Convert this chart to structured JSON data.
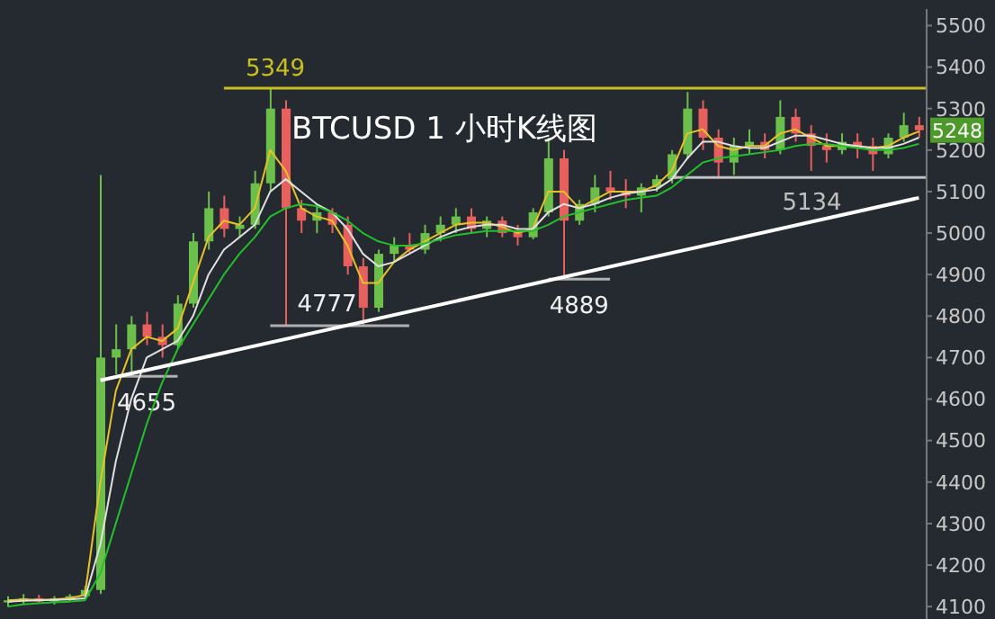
{
  "chart_data": {
    "type": "candlestick",
    "title": "BTCUSD 1 小时K线图",
    "categories": [
      null,
      null,
      null,
      null,
      null,
      null,
      null,
      null,
      null,
      null,
      null,
      null,
      null,
      null,
      null,
      null,
      null,
      null,
      null,
      null,
      null,
      null,
      null,
      null,
      null,
      null,
      null,
      null,
      null,
      null,
      null,
      null,
      null,
      null,
      null,
      null,
      null,
      null,
      null,
      null,
      null,
      null,
      null,
      null,
      null,
      null,
      null,
      null,
      null,
      null,
      null,
      null,
      null,
      null,
      null,
      null,
      null,
      null,
      null,
      null
    ],
    "ohlc": [
      [
        4110,
        4125,
        4100,
        4115
      ],
      [
        4115,
        4130,
        4105,
        4120
      ],
      [
        4120,
        4128,
        4110,
        4112
      ],
      [
        4112,
        4125,
        4105,
        4120
      ],
      [
        4120,
        4130,
        4112,
        4125
      ],
      [
        4125,
        4150,
        4118,
        4140
      ],
      [
        4140,
        5140,
        4130,
        4700
      ],
      [
        4700,
        4780,
        4660,
        4720
      ],
      [
        4720,
        4800,
        4655,
        4780
      ],
      [
        4780,
        4810,
        4730,
        4750
      ],
      [
        4750,
        4780,
        4700,
        4730
      ],
      [
        4730,
        4850,
        4720,
        4830
      ],
      [
        4830,
        5000,
        4820,
        4980
      ],
      [
        4980,
        5100,
        4960,
        5060
      ],
      [
        5060,
        5090,
        4990,
        5010
      ],
      [
        5010,
        5040,
        4990,
        5020
      ],
      [
        5020,
        5150,
        5010,
        5120
      ],
      [
        5120,
        5349,
        5100,
        5300
      ],
      [
        5300,
        5320,
        4777,
        5060
      ],
      [
        5060,
        5080,
        5000,
        5030
      ],
      [
        5030,
        5070,
        5000,
        5050
      ],
      [
        5050,
        5060,
        5000,
        5020
      ],
      [
        5020,
        5040,
        4900,
        4920
      ],
      [
        4920,
        4940,
        4777,
        4820
      ],
      [
        4820,
        4960,
        4810,
        4950
      ],
      [
        4950,
        4990,
        4930,
        4970
      ],
      [
        4970,
        5000,
        4950,
        4960
      ],
      [
        4960,
        5020,
        4950,
        5000
      ],
      [
        5000,
        5040,
        4980,
        5020
      ],
      [
        5020,
        5060,
        5000,
        5040
      ],
      [
        5040,
        5060,
        5000,
        5010
      ],
      [
        5010,
        5040,
        4990,
        5030
      ],
      [
        5030,
        5040,
        4990,
        5000
      ],
      [
        5000,
        5020,
        4970,
        4990
      ],
      [
        4990,
        5060,
        4985,
        5050
      ],
      [
        5050,
        5230,
        5040,
        5180
      ],
      [
        5180,
        5200,
        4889,
        5030
      ],
      [
        5030,
        5080,
        5020,
        5070
      ],
      [
        5070,
        5140,
        5050,
        5110
      ],
      [
        5110,
        5150,
        5080,
        5100
      ],
      [
        5100,
        5130,
        5060,
        5090
      ],
      [
        5090,
        5120,
        5050,
        5110
      ],
      [
        5110,
        5140,
        5100,
        5130
      ],
      [
        5130,
        5200,
        5120,
        5190
      ],
      [
        5190,
        5340,
        5180,
        5300
      ],
      [
        5300,
        5320,
        5200,
        5230
      ],
      [
        5230,
        5250,
        5134,
        5170
      ],
      [
        5170,
        5230,
        5140,
        5210
      ],
      [
        5210,
        5250,
        5190,
        5220
      ],
      [
        5220,
        5240,
        5180,
        5200
      ],
      [
        5200,
        5320,
        5190,
        5280
      ],
      [
        5280,
        5300,
        5220,
        5240
      ],
      [
        5240,
        5260,
        5150,
        5210
      ],
      [
        5210,
        5240,
        5170,
        5200
      ],
      [
        5200,
        5240,
        5190,
        5220
      ],
      [
        5220,
        5240,
        5180,
        5210
      ],
      [
        5210,
        5230,
        5150,
        5190
      ],
      [
        5190,
        5240,
        5180,
        5230
      ],
      [
        5230,
        5290,
        5220,
        5260
      ],
      [
        5260,
        5280,
        5230,
        5248
      ]
    ],
    "series": [
      {
        "type": "line",
        "color": "#e6c229",
        "values": [
          4115,
          4117,
          4116,
          4117,
          4120,
          4128,
          4400,
          4620,
          4720,
          4750,
          4740,
          4770,
          4880,
          4990,
          5030,
          5020,
          5060,
          5200,
          5150,
          5060,
          5040,
          5030,
          4970,
          4880,
          4880,
          4930,
          4960,
          4980,
          5000,
          5020,
          5025,
          5025,
          5015,
          5000,
          5010,
          5100,
          5100,
          5060,
          5080,
          5100,
          5100,
          5100,
          5115,
          5150,
          5240,
          5250,
          5210,
          5200,
          5210,
          5210,
          5240,
          5250,
          5230,
          5210,
          5210,
          5210,
          5205,
          5210,
          5230,
          5245
        ]
      },
      {
        "type": "line",
        "color": "#e0e0e0",
        "values": [
          4112,
          4114,
          4115,
          4116,
          4117,
          4120,
          4250,
          4450,
          4600,
          4700,
          4720,
          4740,
          4800,
          4900,
          4960,
          4990,
          5020,
          5100,
          5130,
          5100,
          5070,
          5050,
          5010,
          4950,
          4920,
          4930,
          4950,
          4970,
          4990,
          5005,
          5015,
          5020,
          5020,
          5010,
          5010,
          5050,
          5070,
          5060,
          5070,
          5085,
          5095,
          5100,
          5105,
          5130,
          5180,
          5220,
          5220,
          5210,
          5205,
          5205,
          5220,
          5235,
          5235,
          5225,
          5215,
          5210,
          5205,
          5205,
          5215,
          5230
        ]
      },
      {
        "type": "line",
        "color": "#22c02a",
        "values": [
          4100,
          4105,
          4108,
          4110,
          4112,
          4115,
          4180,
          4300,
          4420,
          4540,
          4640,
          4720,
          4780,
          4840,
          4900,
          4950,
          4990,
          5040,
          5060,
          5070,
          5065,
          5050,
          5030,
          5000,
          4980,
          4970,
          4970,
          4975,
          4985,
          4995,
          5000,
          5005,
          5005,
          5005,
          5005,
          5020,
          5040,
          5050,
          5060,
          5070,
          5080,
          5085,
          5090,
          5110,
          5140,
          5170,
          5180,
          5185,
          5190,
          5195,
          5200,
          5210,
          5215,
          5215,
          5210,
          5205,
          5200,
          5200,
          5205,
          5215
        ]
      },
      {
        "type": "line",
        "color": "#ffffff",
        "values": [
          null,
          null,
          null,
          null,
          null,
          null,
          4645,
          null,
          null,
          null,
          null,
          null,
          null,
          null,
          null,
          null,
          null,
          null,
          null,
          null,
          null,
          null,
          null,
          null,
          null,
          null,
          null,
          null,
          null,
          null,
          null,
          null,
          null,
          null,
          null,
          null,
          null,
          null,
          null,
          null,
          null,
          null,
          null,
          null,
          null,
          null,
          null,
          null,
          null,
          null,
          null,
          null,
          null,
          null,
          null,
          null,
          null,
          null,
          null,
          5085
        ]
      }
    ],
    "ylim": [
      4070,
      5540
    ],
    "yticks": [
      4100,
      4200,
      4300,
      4400,
      4500,
      4600,
      4700,
      4800,
      4900,
      5000,
      5100,
      5200,
      5300,
      5400,
      5500
    ],
    "tick_labels": "y",
    "ref_lines": [
      {
        "axis": "y",
        "value": 5349,
        "label": "5349",
        "color": "#c8c020"
      },
      {
        "axis": "y",
        "value": 5134,
        "label": "5134",
        "color": "#c0c0c0"
      }
    ],
    "annotations": [
      {
        "text": "4655",
        "y": 4655
      },
      {
        "text": "4777",
        "y": 4777
      },
      {
        "text": "4889",
        "y": 4889
      },
      {
        "text": "5248",
        "y": 5248
      }
    ]
  }
}
